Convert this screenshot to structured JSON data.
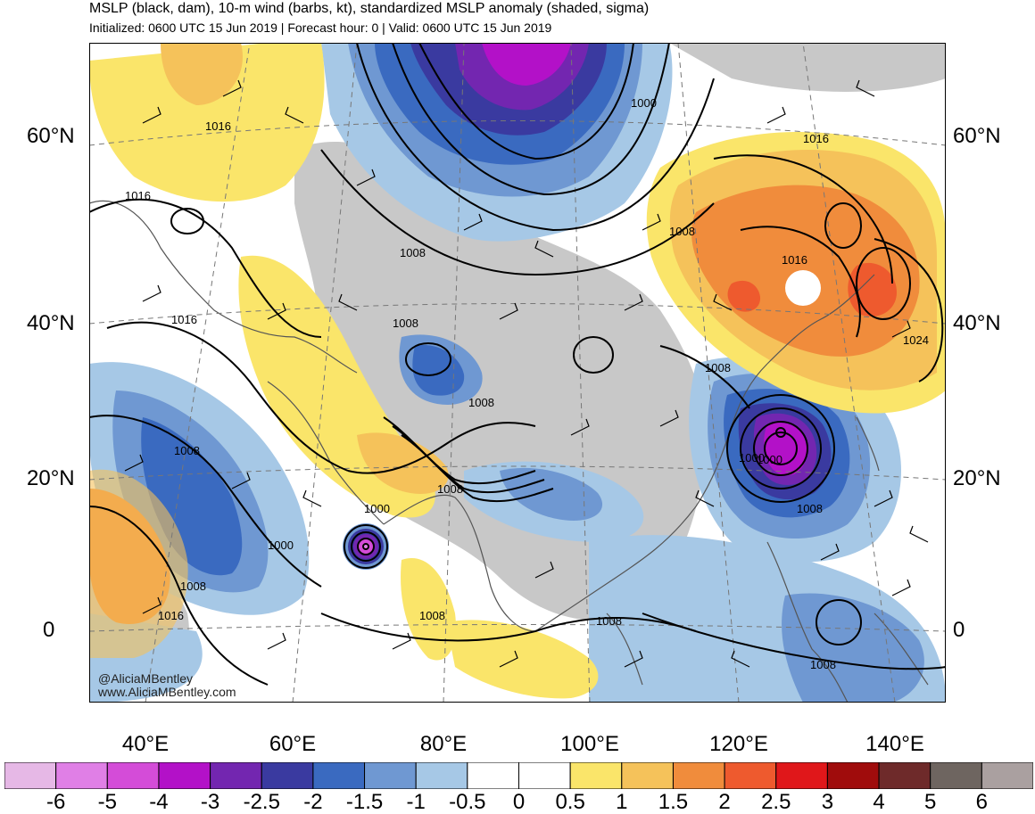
{
  "title": "MSLP (black, dam), 10-m wind (barbs, kt), standardized MSLP anomaly (shaded, sigma)",
  "subtitle": "Initialized: 0600 UTC 15 Jun 2019 | Forecast hour: 0 | Valid: 0600 UTC 15 Jun 2019",
  "credit": {
    "handle": "@AliciaMBentley",
    "site": "www.AliciaMBentley.com"
  },
  "lat_labels": [
    "60°N",
    "40°N",
    "20°N",
    "0"
  ],
  "lon_labels": [
    "40°E",
    "60°E",
    "80°E",
    "100°E",
    "120°E",
    "140°E"
  ],
  "contour_labels": [
    "1000",
    "1016",
    "1016",
    "1016",
    "1008",
    "1008",
    "1008",
    "1008",
    "1008",
    "1000",
    "1000",
    "1000",
    "1008",
    "1008",
    "1016",
    "1008",
    "1008",
    "1008",
    "1000",
    "1008",
    "1016",
    "1016",
    "1008",
    "1024",
    "1008"
  ],
  "colorbar": {
    "ticks": [
      "-6",
      "-5",
      "-4",
      "-3",
      "-2.5",
      "-2",
      "-1.5",
      "-1",
      "-0.5",
      "0",
      "0.5",
      "1",
      "1.5",
      "2",
      "2.5",
      "3",
      "4",
      "5",
      "6"
    ],
    "colors": [
      "#e6b8e6",
      "#e07fe6",
      "#d44cd8",
      "#b311c8",
      "#7326b0",
      "#3a3aa0",
      "#3a6ac0",
      "#6f98d2",
      "#a6c8e6",
      "#ffffff",
      "#ffffff",
      "#fae56a",
      "#f5c25a",
      "#f08c3c",
      "#ee5a2e",
      "#e0171a",
      "#a00c0c",
      "#6e2a2a",
      "#6e6560",
      "#aaa0a0"
    ]
  },
  "legend_colors": {
    "land_gray": "#c8c8c8",
    "coast": "#555555",
    "contour": "#000000"
  }
}
